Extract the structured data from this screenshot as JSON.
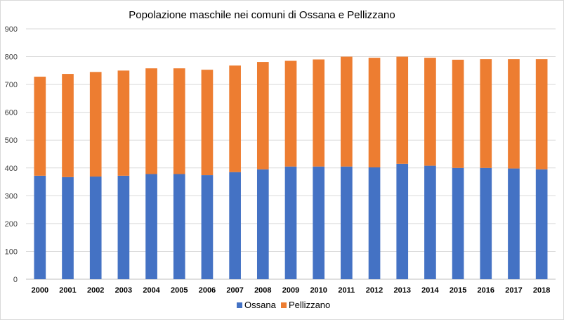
{
  "chart_data": {
    "type": "bar",
    "stacked": true,
    "title": "Popolazione maschile nei comuni di Ossana e Pellizzano",
    "xlabel": "",
    "ylabel": "",
    "ylim": [
      0,
      900
    ],
    "yticks": [
      "0",
      "100",
      "200",
      "300",
      "400",
      "500",
      "600",
      "700",
      "800",
      "900"
    ],
    "grid": true,
    "legend_position": "bottom",
    "categories": [
      "2000",
      "2001",
      "2002",
      "2003",
      "2004",
      "2005",
      "2006",
      "2007",
      "2008",
      "2009",
      "2010",
      "2011",
      "2012",
      "2013",
      "2014",
      "2015",
      "2016",
      "2017",
      "2018"
    ],
    "series": [
      {
        "name": "Ossana",
        "color": "#4472c4",
        "values": [
          372,
          367,
          369,
          372,
          378,
          378,
          374,
          385,
          395,
          405,
          405,
          405,
          402,
          415,
          408,
          400,
          400,
          398,
          395
        ]
      },
      {
        "name": "Pellizzano",
        "color": "#ed7d31",
        "values": [
          356,
          371,
          376,
          378,
          380,
          380,
          379,
          383,
          386,
          380,
          385,
          395,
          394,
          385,
          388,
          389,
          391,
          393,
          396
        ]
      }
    ]
  }
}
